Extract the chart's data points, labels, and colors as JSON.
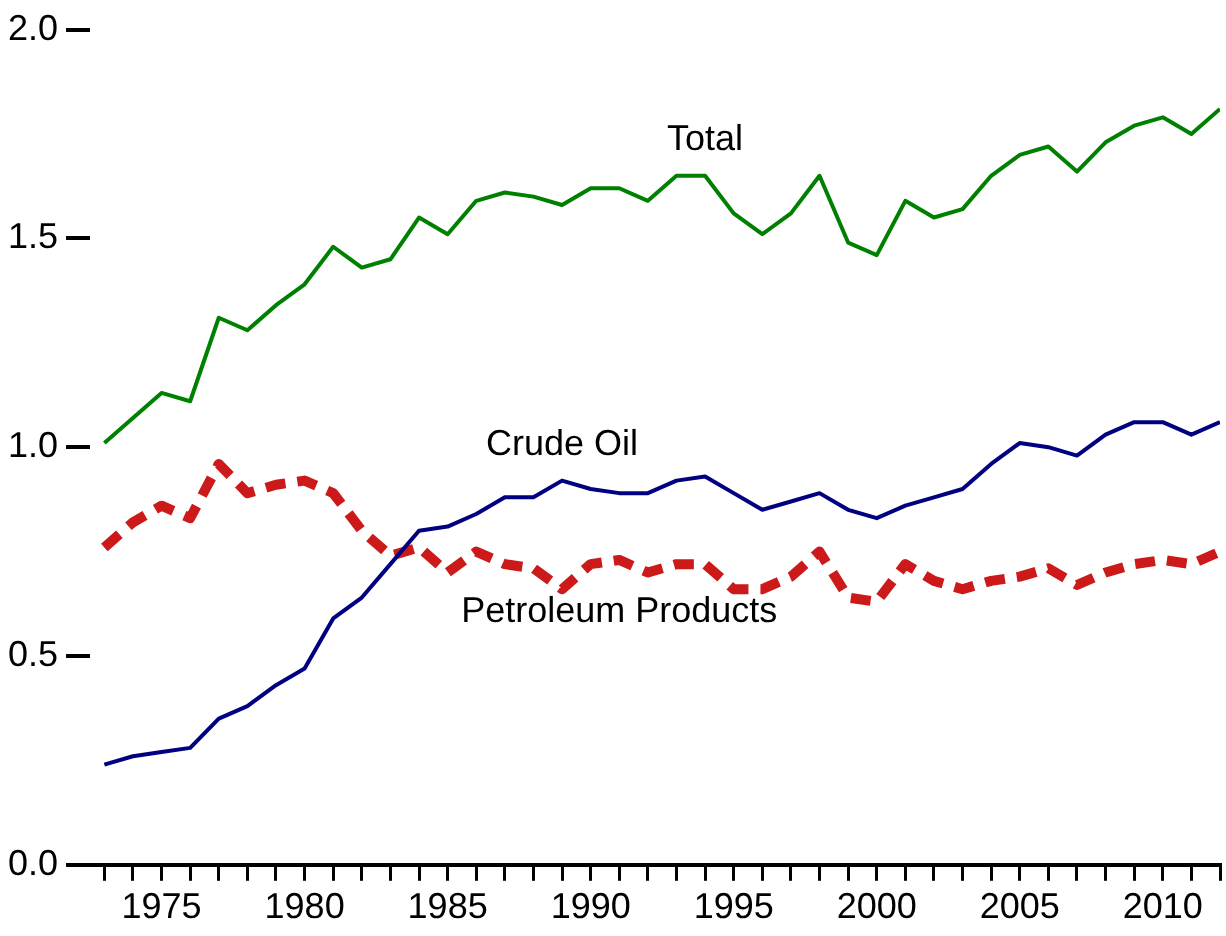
{
  "chart_data": {
    "type": "line",
    "x": [
      1973,
      1974,
      1975,
      1976,
      1977,
      1978,
      1979,
      1980,
      1981,
      1982,
      1983,
      1984,
      1985,
      1986,
      1987,
      1988,
      1989,
      1990,
      1991,
      1992,
      1993,
      1994,
      1995,
      1996,
      1997,
      1998,
      1999,
      2000,
      2001,
      2002,
      2003,
      2004,
      2005,
      2006,
      2007,
      2008,
      2009,
      2010,
      2011,
      2012
    ],
    "series": [
      {
        "name": "Total",
        "color": "#008000",
        "line_style": "solid",
        "values": [
          1.01,
          1.07,
          1.13,
          1.11,
          1.31,
          1.28,
          1.34,
          1.39,
          1.48,
          1.43,
          1.45,
          1.55,
          1.51,
          1.59,
          1.61,
          1.6,
          1.58,
          1.62,
          1.62,
          1.59,
          1.65,
          1.65,
          1.56,
          1.51,
          1.56,
          1.65,
          1.49,
          1.46,
          1.59,
          1.55,
          1.57,
          1.65,
          1.7,
          1.72,
          1.66,
          1.73,
          1.77,
          1.79,
          1.75,
          1.81
        ]
      },
      {
        "name": "Crude Oil",
        "color": "#000080",
        "line_style": "solid",
        "values": [
          0.24,
          0.26,
          0.27,
          0.28,
          0.35,
          0.38,
          0.43,
          0.47,
          0.59,
          0.64,
          0.72,
          0.8,
          0.81,
          0.84,
          0.88,
          0.88,
          0.92,
          0.9,
          0.89,
          0.89,
          0.92,
          0.93,
          0.89,
          0.85,
          0.87,
          0.89,
          0.85,
          0.83,
          0.86,
          0.88,
          0.9,
          0.96,
          1.01,
          1.0,
          0.98,
          1.03,
          1.06,
          1.06,
          1.03,
          1.06
        ]
      },
      {
        "name": "Petroleum Products",
        "color": "#cc1a1a",
        "line_style": "dashed",
        "values": [
          0.76,
          0.82,
          0.86,
          0.83,
          0.96,
          0.89,
          0.91,
          0.92,
          0.89,
          0.8,
          0.74,
          0.76,
          0.7,
          0.75,
          0.72,
          0.71,
          0.66,
          0.72,
          0.73,
          0.7,
          0.72,
          0.72,
          0.66,
          0.66,
          0.69,
          0.75,
          0.64,
          0.63,
          0.72,
          0.68,
          0.66,
          0.68,
          0.69,
          0.71,
          0.67,
          0.7,
          0.72,
          0.73,
          0.72,
          0.75
        ]
      }
    ],
    "xlim": [
      1972.5,
      2012
    ],
    "xticks": [
      {
        "value": 1973,
        "label": null
      },
      {
        "value": 1974,
        "label": null
      },
      1975,
      {
        "value": 1976,
        "label": null
      },
      {
        "value": 1977,
        "label": null
      },
      {
        "value": 1978,
        "label": null
      },
      {
        "value": 1979,
        "label": null
      },
      1980,
      {
        "value": 1981,
        "label": null
      },
      {
        "value": 1982,
        "label": null
      },
      {
        "value": 1983,
        "label": null
      },
      {
        "value": 1984,
        "label": null
      },
      1985,
      {
        "value": 1986,
        "label": null
      },
      {
        "value": 1987,
        "label": null
      },
      {
        "value": 1988,
        "label": null
      },
      {
        "value": 1989,
        "label": null
      },
      1990,
      {
        "value": 1991,
        "label": null
      },
      {
        "value": 1992,
        "label": null
      },
      {
        "value": 1993,
        "label": null
      },
      {
        "value": 1994,
        "label": null
      },
      1995,
      {
        "value": 1996,
        "label": null
      },
      {
        "value": 1997,
        "label": null
      },
      {
        "value": 1998,
        "label": null
      },
      {
        "value": 1999,
        "label": null
      },
      2000,
      {
        "value": 2001,
        "label": null
      },
      {
        "value": 2002,
        "label": null
      },
      {
        "value": 2003,
        "label": null
      },
      {
        "value": 2004,
        "label": null
      },
      2005,
      {
        "value": 2006,
        "label": null
      },
      {
        "value": 2007,
        "label": null
      },
      {
        "value": 2008,
        "label": null
      },
      {
        "value": 2009,
        "label": null
      },
      2010,
      {
        "value": 2011,
        "label": null
      },
      {
        "value": 2012,
        "label": null
      }
    ],
    "ylim": [
      0,
      2.0
    ],
    "yticks": [
      {
        "value": 0,
        "label": "0.0"
      },
      {
        "value": 0.5,
        "label": "0.5"
      },
      {
        "value": 1,
        "label": "1.0"
      },
      {
        "value": 1.5,
        "label": "1.5"
      },
      {
        "value": 2,
        "label": "2.0"
      }
    ],
    "grid": false,
    "legend": false,
    "marker": "none"
  }
}
